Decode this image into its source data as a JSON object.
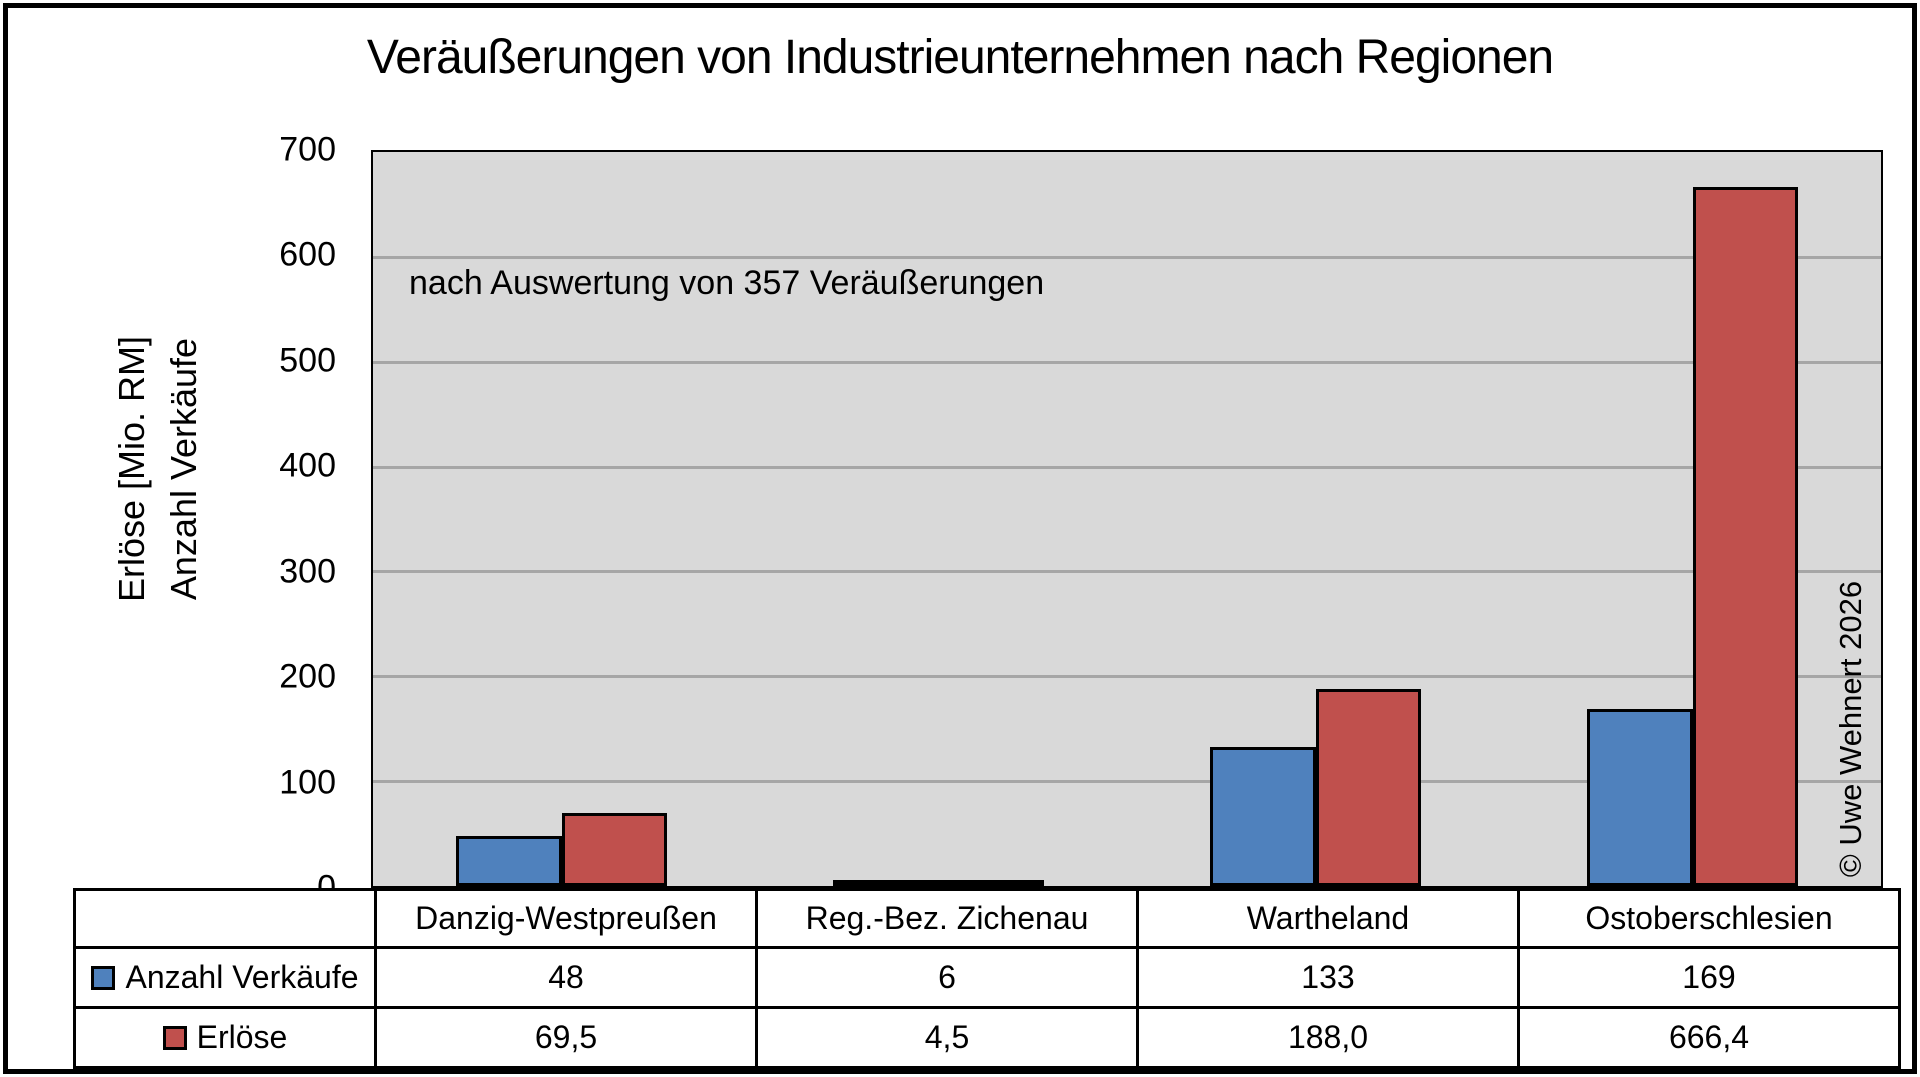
{
  "title": "Veräußerungen von Industrieunternehmen nach Regionen",
  "plot": {
    "annotation": "nach Auswertung von 357 Veräußerungen",
    "watermark": "© Uwe Wehnert 2026",
    "background": "#D9D9D9",
    "gridline_color": "#A6A6A6"
  },
  "y_axis": {
    "title_line1": "Erlöse [Mio. RM]",
    "title_line2": "Anzahl Verkäufe",
    "tick_min": 0,
    "tick_max": 700,
    "tick_step": 100
  },
  "chart_data": {
    "type": "bar",
    "title": "Veräußerungen von Industrieunternehmen nach Regionen",
    "subtitle": "nach Auswertung von 357 Veräußerungen",
    "categories": [
      "Danzig-Westpreußen",
      "Reg.-Bez. Zichenau",
      "Wartheland",
      "Ostoberschlesien"
    ],
    "series": [
      {
        "name": "Anzahl Verkäufe",
        "color": "#4F81BD",
        "values": [
          48,
          6,
          133,
          169
        ],
        "values_display": [
          "48",
          "6",
          "133",
          "169"
        ]
      },
      {
        "name": "Erlöse",
        "color": "#C0504D",
        "values": [
          69.5,
          4.5,
          188.0,
          666.4
        ],
        "values_display": [
          "69,5",
          "4,5",
          "188,0",
          "666,4"
        ]
      }
    ],
    "ylabel": "Erlöse [Mio. RM] / Anzahl Verkäufe",
    "ylim": [
      0,
      700
    ],
    "grid": true,
    "legend_position": "table-left"
  }
}
